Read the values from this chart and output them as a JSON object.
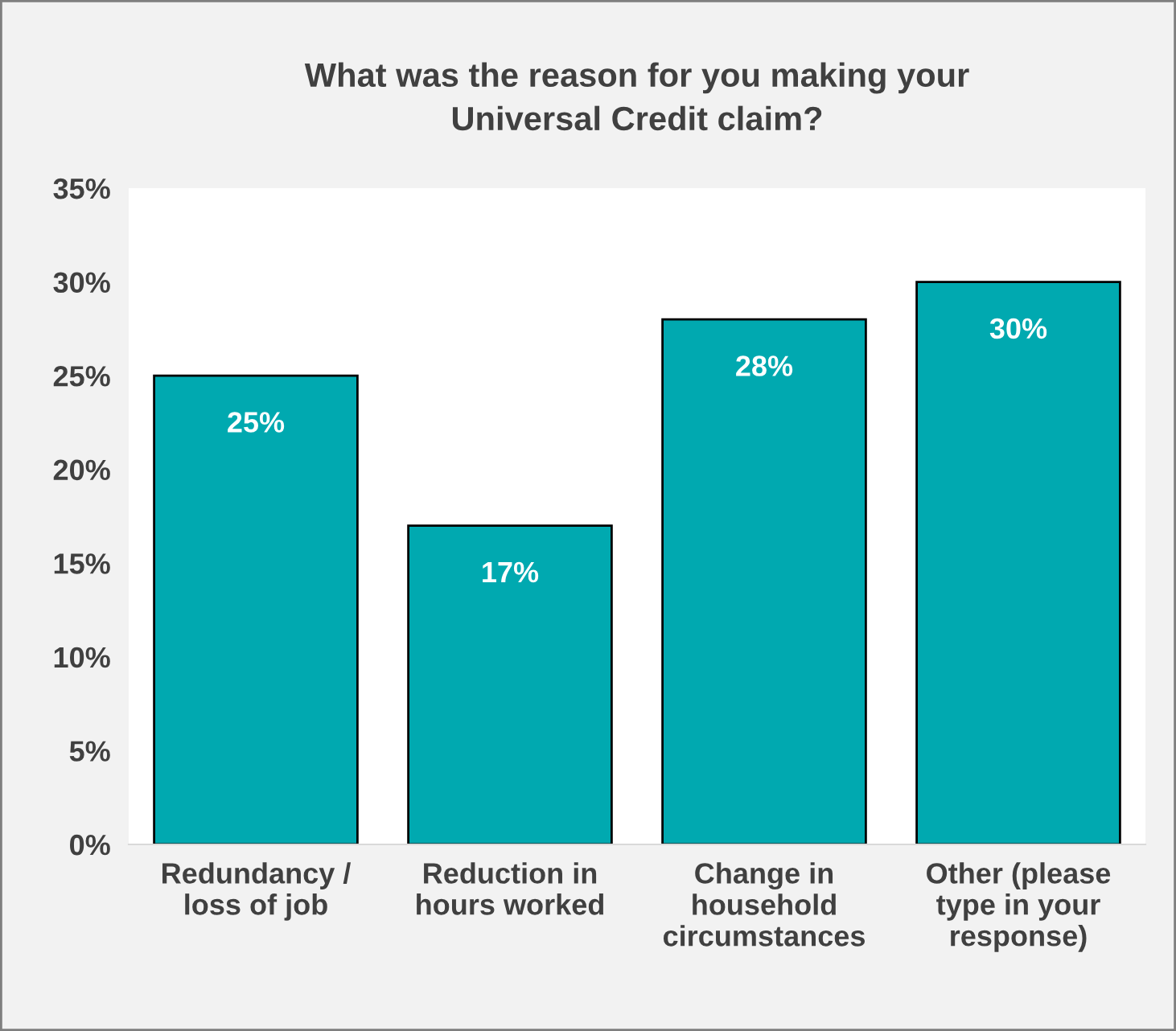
{
  "chart_data": {
    "type": "bar",
    "title": "What was the reason for you making your\nUniversal Credit claim?",
    "categories": [
      "Redundancy /\nloss of job",
      "Reduction in\nhours worked",
      "Change in\nhousehold\ncircumstances",
      "Other (please\ntype in your\nresponse)"
    ],
    "values": [
      25,
      17,
      28,
      30
    ],
    "color": "#00a9b0",
    "value_labels": [
      "25%",
      "17%",
      "28%",
      "30%"
    ],
    "ylim": [
      0,
      35
    ],
    "yticks": [
      {
        "value": 0,
        "label": "0%"
      },
      {
        "value": 5,
        "label": "5%"
      },
      {
        "value": 10,
        "label": "10%"
      },
      {
        "value": 15,
        "label": "15%"
      },
      {
        "value": 20,
        "label": "20%"
      },
      {
        "value": 25,
        "label": "25%"
      },
      {
        "value": 30,
        "label": "30%"
      },
      {
        "value": 35,
        "label": "35%"
      }
    ],
    "grid": false,
    "legend": false
  }
}
